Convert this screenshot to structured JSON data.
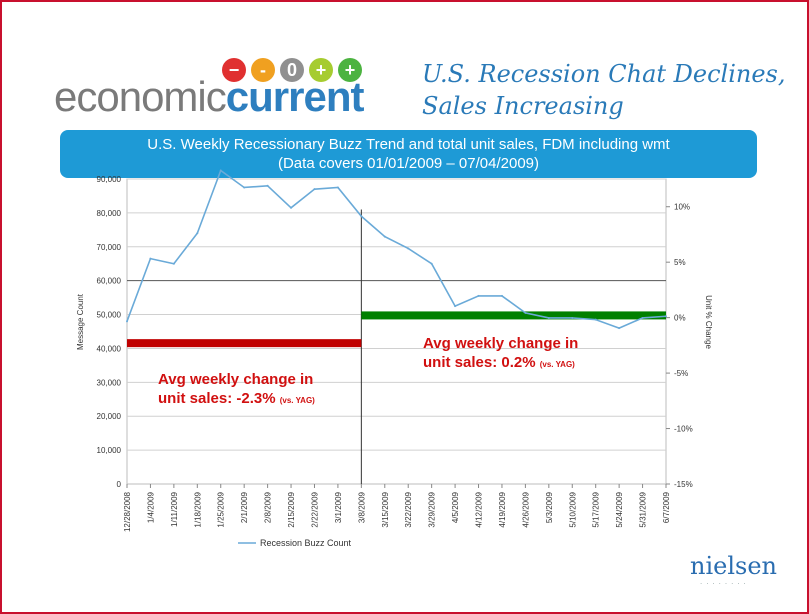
{
  "logo": {
    "word1": "economic",
    "word2": "current",
    "dots": [
      {
        "glyph": "−",
        "color": "#e03030"
      },
      {
        "glyph": "-",
        "color": "#f0a020"
      },
      {
        "glyph": "0",
        "color": "#909090"
      },
      {
        "glyph": "+",
        "color": "#a6cc30"
      },
      {
        "glyph": "+",
        "color": "#4cb340"
      }
    ]
  },
  "title": {
    "line1": "U.S. Recession Chat Declines,",
    "line2": "Sales Increasing"
  },
  "banner": {
    "line1": "U.S. Weekly Recessionary Buzz Trend and total unit sales, FDM including wmt",
    "line2": "(Data covers 01/01/2009 – 07/04/2009)"
  },
  "annotations": {
    "left": {
      "line1": "Avg weekly change in",
      "line2_main": "unit sales: -2.3%",
      "line2_small": "(vs. YAG)"
    },
    "right": {
      "line1": "Avg weekly change in",
      "line2_main": "unit sales: 0.2%",
      "line2_small": "(vs. YAG)"
    }
  },
  "brand": {
    "name": "nielsen",
    "dots": "........"
  },
  "colors": {
    "line": "#6aaad8",
    "red_bar": "#c00000",
    "green_bar": "#008000"
  },
  "chart_data": {
    "type": "line",
    "categories": [
      "12/28/2008",
      "1/4/2009",
      "1/11/2009",
      "1/18/2009",
      "1/25/2009",
      "2/1/2009",
      "2/8/2009",
      "2/15/2009",
      "2/22/2009",
      "3/1/2009",
      "3/8/2009",
      "3/15/2009",
      "3/22/2009",
      "3/29/2009",
      "4/5/2009",
      "4/12/2009",
      "4/19/2009",
      "4/26/2009",
      "5/3/2009",
      "5/10/2009",
      "5/17/2009",
      "5/24/2009",
      "5/31/2009",
      "6/7/2009"
    ],
    "series": [
      {
        "name": "Recession Buzz Count",
        "axis": "left",
        "values": [
          48000,
          66500,
          65000,
          74000,
          92500,
          87500,
          88000,
          81500,
          87000,
          87500,
          79000,
          73000,
          69500,
          65000,
          52500,
          55500,
          55500,
          50500,
          49000,
          49000,
          48500,
          46000,
          49000,
          49500
        ]
      }
    ],
    "ylabel": "Message Count",
    "y2label": "Unit % Change",
    "ylim": [
      0,
      90000
    ],
    "yticks": [
      "0",
      "10,000",
      "20,000",
      "30,000",
      "40,000",
      "50,000",
      "60,000",
      "70,000",
      "80,000",
      "90,000"
    ],
    "y2lim": [
      -15,
      12.5
    ],
    "y2ticks": [
      "-15%",
      "-10%",
      "-5%",
      "0%",
      "5%",
      "10%"
    ],
    "reference_segments": [
      {
        "label": "avg weekly change before 3/8/2009",
        "value_pct": -2.3,
        "from": "12/28/2008",
        "to": "3/8/2009",
        "color": "#c00000"
      },
      {
        "label": "avg weekly change from 3/8/2009",
        "value_pct": 0.2,
        "from": "3/8/2009",
        "to": "6/7/2009",
        "color": "#008000"
      }
    ],
    "divider_at": "3/8/2009",
    "legend": "bottom"
  }
}
